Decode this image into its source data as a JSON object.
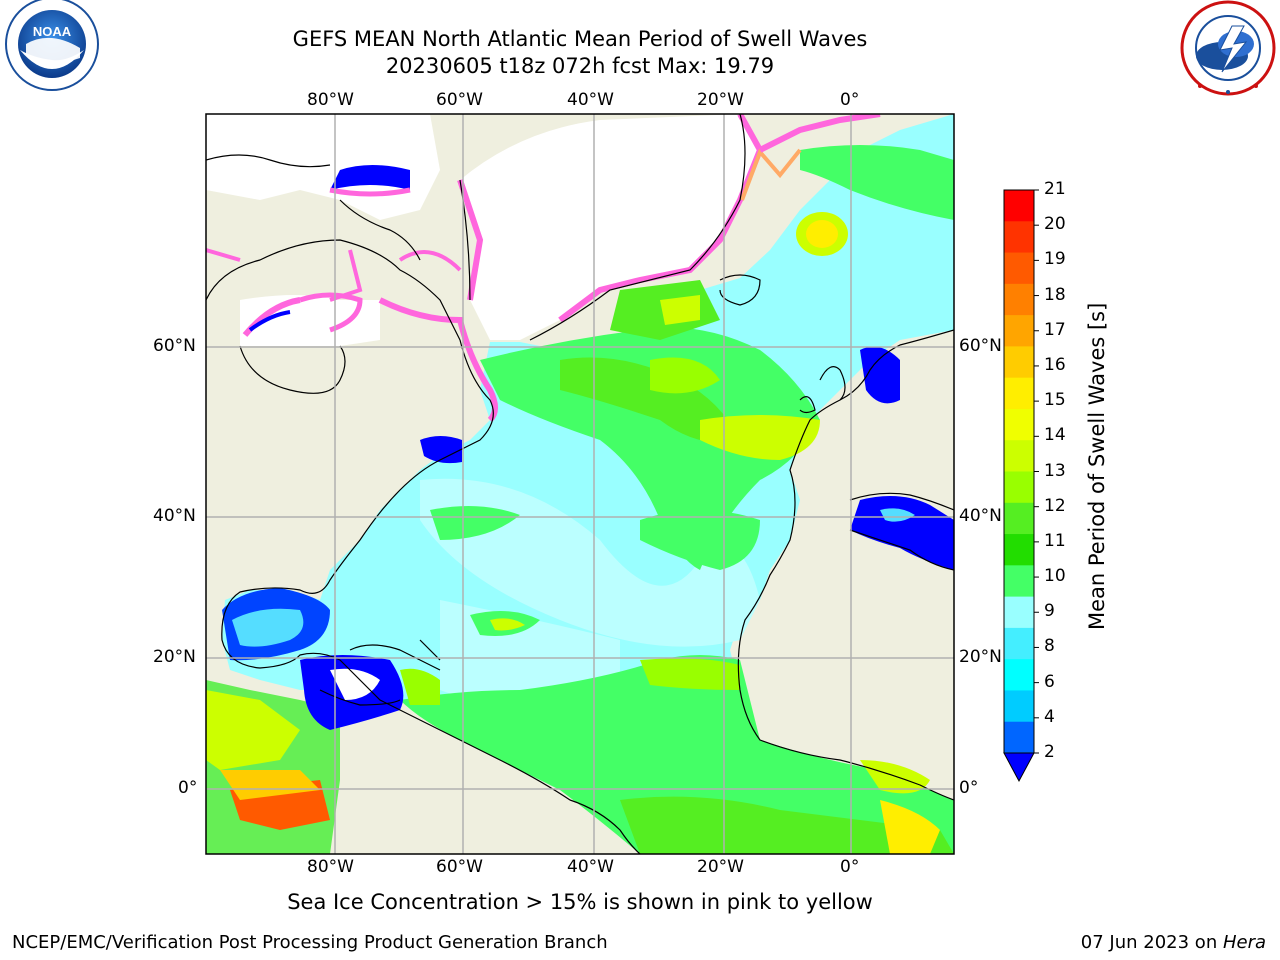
{
  "title": {
    "line1": "GEFS MEAN North Atlantic Mean Period of Swell Waves",
    "line2": "20230605 t18z 072h fcst   Max: 19.79"
  },
  "logos": {
    "left": {
      "icon": "noaa-logo",
      "ring_text": "NATIONAL OCEANIC AND ATMOSPHERIC ADMINISTRATION",
      "bottom_text": "U.S. DEPARTMENT OF COMMERCE",
      "center_text": "NOAA"
    },
    "right": {
      "icon": "nws-logo",
      "ring_text": "NATIONAL WEATHER SERVICE"
    }
  },
  "map": {
    "lon_labels": [
      "80°W",
      "60°W",
      "40°W",
      "20°W",
      "0°"
    ],
    "lat_labels": [
      "60°N",
      "40°N",
      "20°N",
      "0°"
    ],
    "colors": {
      "ocean_land": "#efefdf",
      "ice_white": "#ffffff",
      "ice_edge": "#ff66dd",
      "grid": "#b0b0b0"
    }
  },
  "colorbar": {
    "title": "Mean Period of Swell Waves [s]",
    "ticks": [
      "21",
      "20",
      "19",
      "18",
      "17",
      "16",
      "15",
      "14",
      "13",
      "12",
      "11",
      "10",
      "9",
      "8",
      "6",
      "4",
      "2"
    ],
    "colors": [
      "#ff0000",
      "#ff3300",
      "#ff5a00",
      "#ff8000",
      "#ffa500",
      "#ffcc00",
      "#ffee00",
      "#f0ff00",
      "#ccff00",
      "#99ff00",
      "#55ee22",
      "#22dd00",
      "#44ff66",
      "#99ffff",
      "#44eeff",
      "#00ffff",
      "#00ccff",
      "#0066ff"
    ],
    "arrow_color": "#0000ff"
  },
  "caption": "Sea Ice Concentration > 15% is shown in pink to yellow",
  "footer": {
    "left": "NCEP/EMC/Verification Post Processing Product Generation Branch",
    "right_date": "07 Jun 2023 on ",
    "right_host": "Hera"
  }
}
